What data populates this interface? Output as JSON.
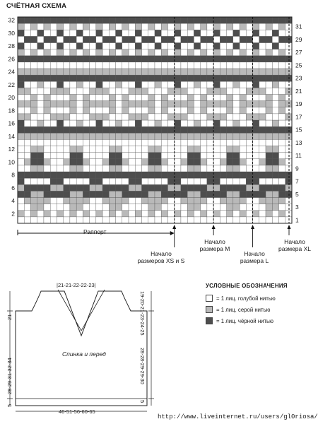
{
  "chart": {
    "title": "СЧЁТНАЯ СХЕМА",
    "rows": 32,
    "cols": 42,
    "left_row_numbers": [
      "2",
      "4",
      "6",
      "8",
      "10",
      "12",
      "14",
      "16",
      "18",
      "20",
      "22",
      "24",
      "26",
      "28",
      "30",
      "32"
    ],
    "right_row_numbers": [
      "1",
      "3",
      "5",
      "7",
      "9",
      "11",
      "13",
      "15",
      "17",
      "19",
      "21",
      "23",
      "25",
      "27",
      "29",
      "31"
    ],
    "repeat_label": "Раппорт",
    "size_markers": [
      {
        "col": 24,
        "label_lines": [
          "Начало",
          "размеров XS и S"
        ]
      },
      {
        "col": 30,
        "label_lines": [
          "Начало",
          "размера М"
        ]
      },
      {
        "col": 36,
        "label_lines": [
          "Начало",
          "размера L"
        ]
      },
      {
        "col": 42,
        "label_lines": [
          "Начало",
          "размера XL"
        ]
      }
    ]
  },
  "legend": {
    "title": "УСЛОВНЫЕ ОБОЗНАЧЕНИЯ",
    "items": [
      {
        "color": "#ffffff",
        "label": "= 1 лиц. голубой нитью"
      },
      {
        "color": "#b9b9b9",
        "label": "= 1 лиц. серой нитью"
      },
      {
        "color": "#4d4d4d",
        "label": "= 1 лиц. чёрной нитью"
      }
    ]
  },
  "garment": {
    "caption": "Спинка и перед",
    "top_dim": "21-21-22-22-23",
    "bottom_dim": "46-51-56-60-65",
    "left_dims": [
      "21",
      "28-29-31-32-34",
      "5"
    ],
    "right_dims": [
      "19-20-21-23-24-25",
      "28-28-29-29-30",
      "5"
    ]
  },
  "watermark": "http://www.liveinternet.ru/users/gl0riosa/"
}
